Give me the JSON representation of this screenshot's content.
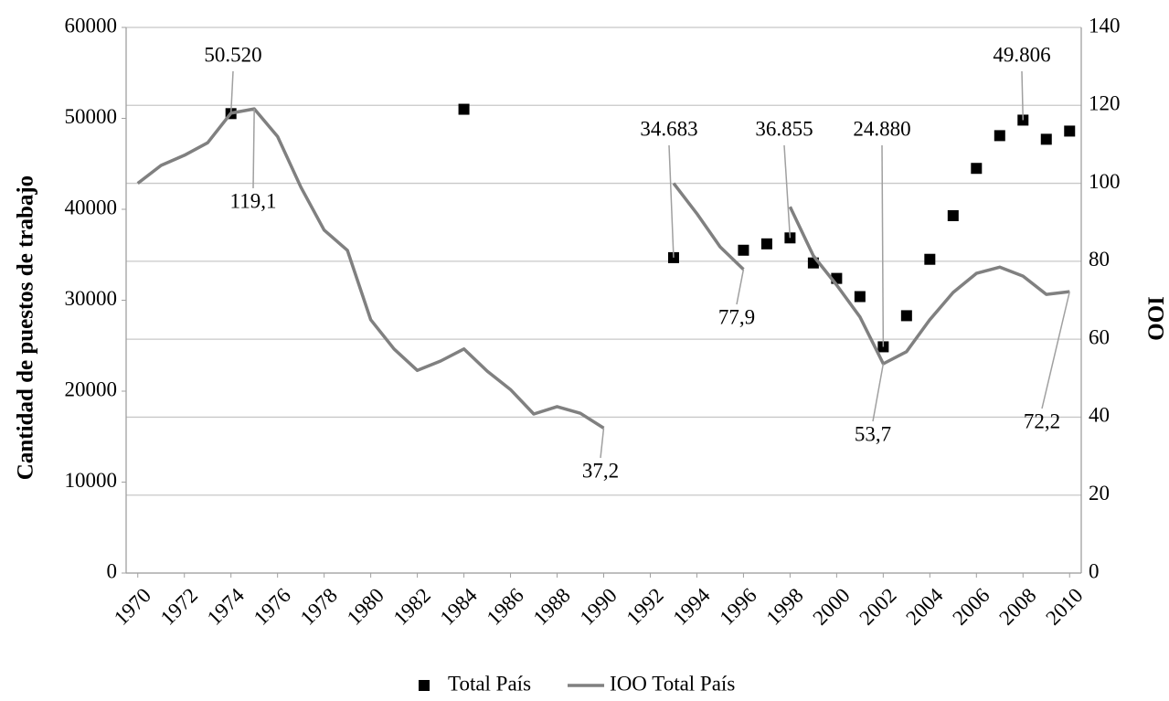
{
  "chart_data": {
    "type": "line",
    "x": [
      1970,
      1971,
      1972,
      1973,
      1974,
      1975,
      1976,
      1977,
      1978,
      1979,
      1980,
      1981,
      1982,
      1983,
      1984,
      1985,
      1986,
      1987,
      1988,
      1989,
      1990,
      1991,
      1992,
      1993,
      1994,
      1995,
      1996,
      1997,
      1998,
      1999,
      2000,
      2001,
      2002,
      2003,
      2004,
      2005,
      2006,
      2007,
      2008,
      2009,
      2010
    ],
    "xlim": [
      1969.5,
      2010.5
    ],
    "xticks": [
      1970,
      1972,
      1974,
      1976,
      1978,
      1980,
      1982,
      1984,
      1986,
      1988,
      1990,
      1992,
      1994,
      1996,
      1998,
      2000,
      2002,
      2004,
      2006,
      2008,
      2010
    ],
    "ylim": [
      0,
      60000
    ],
    "yticks": [
      0,
      10000,
      20000,
      30000,
      40000,
      50000,
      60000
    ],
    "y2lim": [
      0,
      140
    ],
    "y2ticks": [
      0,
      20,
      40,
      60,
      80,
      100,
      120,
      140
    ],
    "ylabel": "Cantidad de puestos de trabajo",
    "y2label": "IOO",
    "grid": true,
    "legend": "bottom",
    "series": [
      {
        "name": "Total País",
        "type": "scatter",
        "color": "#000000",
        "axis": "y",
        "values": [
          null,
          null,
          null,
          null,
          50520,
          null,
          null,
          null,
          null,
          null,
          null,
          null,
          null,
          null,
          51000,
          null,
          null,
          null,
          null,
          null,
          null,
          null,
          null,
          34683,
          null,
          null,
          35500,
          36200,
          36855,
          34100,
          32400,
          30400,
          24880,
          28300,
          34500,
          39300,
          44500,
          48100,
          49806,
          47700,
          48600
        ],
        "value_labels": [
          null,
          null,
          null,
          null,
          "50.520",
          null,
          null,
          null,
          null,
          null,
          null,
          null,
          null,
          null,
          null,
          null,
          null,
          null,
          null,
          null,
          null,
          null,
          null,
          "34.683",
          null,
          null,
          null,
          null,
          "36.855",
          null,
          null,
          null,
          "24.880",
          null,
          null,
          null,
          null,
          null,
          "49.806",
          null,
          null
        ]
      },
      {
        "name": "IOO Total País",
        "type": "line",
        "color": "#808080",
        "axis": "y2",
        "values": [
          100,
          104.6,
          107.2,
          110.4,
          118,
          119.1,
          112,
          99,
          88,
          82.8,
          65,
          57.5,
          52,
          54.4,
          57.5,
          51.8,
          47.1,
          40.8,
          42.7,
          41,
          37.2,
          null,
          null,
          100,
          92.2,
          83.7,
          77.9,
          null,
          94,
          81.4,
          73.9,
          65.7,
          53.7,
          56.8,
          65,
          72,
          76.9,
          78.5,
          76.2,
          71.5,
          72.2
        ],
        "value_labels": [
          null,
          null,
          null,
          null,
          null,
          "119,1",
          null,
          null,
          null,
          null,
          null,
          null,
          null,
          null,
          null,
          null,
          null,
          null,
          null,
          null,
          "37,2",
          null,
          null,
          null,
          null,
          null,
          "77,9",
          null,
          null,
          null,
          null,
          null,
          "53,7",
          null,
          null,
          null,
          null,
          null,
          null,
          null,
          "72,2"
        ]
      }
    ]
  }
}
